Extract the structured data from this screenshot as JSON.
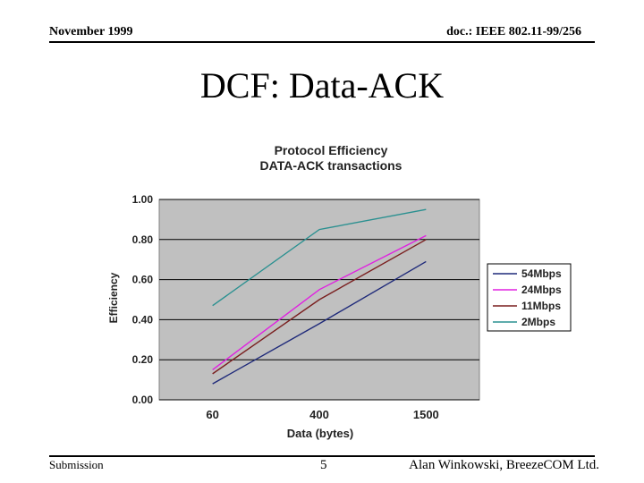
{
  "header": {
    "date": "November 1999",
    "doc_id": "doc.: IEEE 802.11-99/256"
  },
  "slide": {
    "title": "DCF: Data-ACK"
  },
  "footer": {
    "left": "Submission",
    "page": "5",
    "author": "Alan Winkowski, BreezeCOM Ltd."
  },
  "chart_data": {
    "type": "line",
    "title": "Protocol Efficiency",
    "subtitle": "DATA-ACK transactions",
    "xlabel": "Data (bytes)",
    "ylabel": "Efficiency",
    "categories": [
      "60",
      "400",
      "1500"
    ],
    "ylim": [
      0,
      1
    ],
    "yticks": [
      "0.00",
      "0.20",
      "0.40",
      "0.60",
      "0.80",
      "1.00"
    ],
    "grid": true,
    "legend": "right",
    "series": [
      {
        "name": "54Mbps",
        "values": [
          0.08,
          0.38,
          0.69
        ],
        "color": "#1f2a7a"
      },
      {
        "name": "24Mbps",
        "values": [
          0.15,
          0.55,
          0.82
        ],
        "color": "#e020e0"
      },
      {
        "name": "11Mbps",
        "values": [
          0.13,
          0.5,
          0.8
        ],
        "color": "#7a1f1f"
      },
      {
        "name": "2Mbps",
        "values": [
          0.47,
          0.85,
          0.95
        ],
        "color": "#2a9090"
      }
    ]
  }
}
